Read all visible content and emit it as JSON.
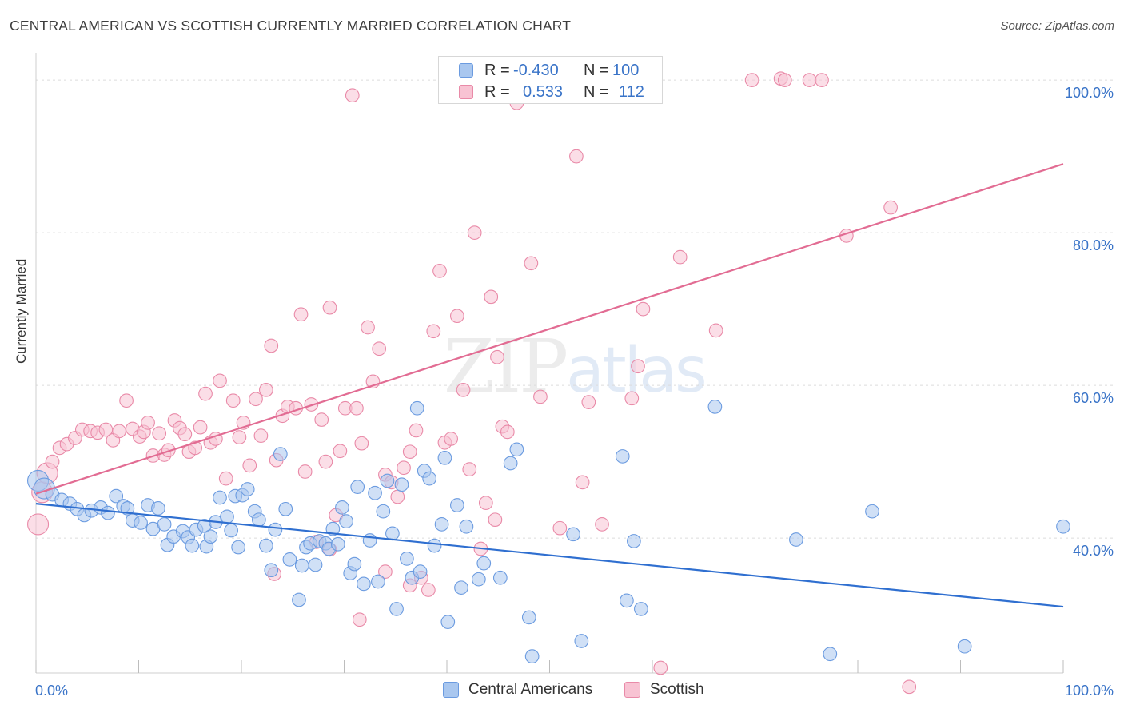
{
  "title": "CENTRAL AMERICAN VS SCOTTISH CURRENTLY MARRIED CORRELATION CHART",
  "source": "Source: ZipAtlas.com",
  "watermark": {
    "zip": "ZIP",
    "atlas": "atlas"
  },
  "legend": {
    "rows": [
      {
        "r_label": "R =",
        "r_value": "-0.430",
        "n_label": "N =",
        "n_value": "100",
        "color": "#a9c7ef",
        "border": "#6b9be0"
      },
      {
        "r_label": "R =",
        "r_value": "0.533",
        "n_label": "N =",
        "n_value": "112",
        "color": "#f8c3d3",
        "border": "#e98aa8"
      }
    ]
  },
  "bottom_legend": [
    {
      "label": "Central Americans",
      "color": "#a9c7ef",
      "border": "#6b9be0"
    },
    {
      "label": "Scottish",
      "color": "#f8c3d3",
      "border": "#e98aa8"
    }
  ],
  "chart_data": {
    "type": "scatter",
    "title": "CENTRAL AMERICAN VS SCOTTISH CURRENTLY MARRIED CORRELATION CHART",
    "xlabel": "",
    "ylabel": "Currently Married",
    "xlim": [
      0,
      100
    ],
    "ylim": [
      22,
      102
    ],
    "x_tick_labels": [
      "0.0%",
      "100.0%"
    ],
    "y_ticks": [
      40,
      60,
      80,
      100
    ],
    "y_tick_labels": [
      "40.0%",
      "60.0%",
      "80.0%",
      "100.0%"
    ],
    "grid": true,
    "legend_position": "top-center",
    "colors": {
      "blue_fill": "#a9c7ef",
      "blue_stroke": "#6b9be0",
      "blue_line": "#2f6fd0",
      "pink_fill": "#f8c3d3",
      "pink_stroke": "#e98aa8",
      "pink_line": "#e26c93",
      "tick_label": "#3a74c8"
    },
    "series": [
      {
        "name": "Central Americans",
        "r": -0.43,
        "n": 100,
        "trend": {
          "x": [
            0,
            100
          ],
          "y": [
            44.5,
            31.0
          ]
        },
        "points": [
          [
            0.2,
            47.5
          ],
          [
            0.8,
            46.5
          ],
          [
            1.6,
            45.7
          ],
          [
            2.5,
            45.0
          ],
          [
            3.3,
            44.5
          ],
          [
            4.0,
            43.8
          ],
          [
            4.7,
            43.0
          ],
          [
            5.4,
            43.6
          ],
          [
            6.3,
            44.0
          ],
          [
            7.0,
            43.3
          ],
          [
            7.8,
            45.5
          ],
          [
            8.5,
            44.2
          ],
          [
            8.9,
            43.9
          ],
          [
            9.4,
            42.3
          ],
          [
            10.2,
            42.0
          ],
          [
            10.9,
            44.3
          ],
          [
            11.4,
            41.2
          ],
          [
            11.9,
            43.9
          ],
          [
            12.5,
            41.8
          ],
          [
            12.8,
            39.1
          ],
          [
            13.4,
            40.2
          ],
          [
            14.3,
            40.9
          ],
          [
            14.8,
            40.1
          ],
          [
            15.2,
            39.0
          ],
          [
            15.6,
            41.1
          ],
          [
            16.4,
            41.6
          ],
          [
            16.6,
            38.9
          ],
          [
            17.0,
            40.2
          ],
          [
            17.5,
            42.1
          ],
          [
            17.9,
            45.3
          ],
          [
            18.6,
            42.8
          ],
          [
            19.0,
            41.0
          ],
          [
            19.4,
            45.5
          ],
          [
            19.7,
            38.8
          ],
          [
            20.1,
            45.6
          ],
          [
            20.6,
            46.4
          ],
          [
            21.3,
            43.5
          ],
          [
            21.7,
            42.4
          ],
          [
            22.4,
            39.0
          ],
          [
            22.9,
            35.8
          ],
          [
            23.3,
            41.1
          ],
          [
            23.8,
            51.0
          ],
          [
            24.3,
            43.8
          ],
          [
            24.7,
            37.2
          ],
          [
            25.6,
            31.9
          ],
          [
            25.9,
            36.4
          ],
          [
            26.3,
            38.8
          ],
          [
            26.7,
            39.3
          ],
          [
            27.2,
            36.5
          ],
          [
            27.6,
            39.6
          ],
          [
            28.2,
            39.3
          ],
          [
            28.5,
            38.6
          ],
          [
            28.9,
            41.2
          ],
          [
            29.4,
            39.2
          ],
          [
            29.8,
            44.0
          ],
          [
            30.2,
            42.2
          ],
          [
            30.6,
            35.4
          ],
          [
            31.0,
            36.6
          ],
          [
            31.3,
            46.7
          ],
          [
            31.9,
            34.0
          ],
          [
            32.5,
            39.7
          ],
          [
            33.0,
            45.9
          ],
          [
            33.3,
            34.3
          ],
          [
            33.8,
            43.5
          ],
          [
            34.2,
            47.5
          ],
          [
            34.7,
            40.6
          ],
          [
            35.1,
            30.7
          ],
          [
            35.6,
            47.0
          ],
          [
            36.1,
            37.3
          ],
          [
            36.6,
            34.8
          ],
          [
            37.1,
            57.0
          ],
          [
            37.4,
            35.6
          ],
          [
            37.8,
            48.8
          ],
          [
            38.3,
            47.8
          ],
          [
            38.8,
            39.0
          ],
          [
            39.5,
            41.8
          ],
          [
            39.8,
            50.5
          ],
          [
            40.1,
            29.0
          ],
          [
            41.0,
            44.3
          ],
          [
            41.4,
            33.5
          ],
          [
            41.9,
            41.5
          ],
          [
            43.1,
            34.6
          ],
          [
            43.6,
            36.7
          ],
          [
            45.2,
            34.8
          ],
          [
            46.2,
            49.8
          ],
          [
            46.8,
            51.6
          ],
          [
            48.3,
            24.5
          ],
          [
            48.0,
            29.6
          ],
          [
            52.3,
            40.5
          ],
          [
            53.1,
            26.5
          ],
          [
            57.1,
            50.7
          ],
          [
            57.5,
            31.8
          ],
          [
            58.2,
            39.6
          ],
          [
            58.9,
            30.7
          ],
          [
            66.1,
            57.2
          ],
          [
            74.0,
            39.8
          ],
          [
            77.3,
            24.8
          ],
          [
            81.4,
            43.5
          ],
          [
            90.4,
            25.8
          ],
          [
            100.0,
            41.5
          ]
        ]
      },
      {
        "name": "Scottish",
        "r": 0.533,
        "n": 112,
        "trend": {
          "x": [
            0,
            100
          ],
          "y": [
            45.8,
            89.0
          ]
        },
        "points": [
          [
            0.2,
            41.8
          ],
          [
            0.6,
            46.0
          ],
          [
            1.1,
            48.5
          ],
          [
            1.6,
            50.0
          ],
          [
            2.3,
            51.8
          ],
          [
            3.0,
            52.3
          ],
          [
            3.8,
            53.1
          ],
          [
            4.5,
            54.2
          ],
          [
            5.3,
            54.0
          ],
          [
            6.0,
            53.8
          ],
          [
            6.8,
            54.2
          ],
          [
            7.5,
            52.8
          ],
          [
            8.1,
            54.0
          ],
          [
            8.8,
            58.0
          ],
          [
            9.4,
            54.3
          ],
          [
            10.1,
            53.3
          ],
          [
            10.5,
            53.9
          ],
          [
            10.9,
            55.1
          ],
          [
            11.4,
            50.8
          ],
          [
            12.0,
            53.7
          ],
          [
            12.5,
            50.9
          ],
          [
            12.9,
            51.5
          ],
          [
            13.5,
            55.4
          ],
          [
            14.0,
            54.4
          ],
          [
            14.5,
            53.6
          ],
          [
            14.9,
            51.3
          ],
          [
            15.5,
            51.8
          ],
          [
            16.0,
            54.5
          ],
          [
            16.5,
            58.9
          ],
          [
            17.0,
            52.5
          ],
          [
            17.5,
            53.0
          ],
          [
            17.9,
            60.6
          ],
          [
            18.5,
            47.8
          ],
          [
            19.2,
            58.0
          ],
          [
            19.8,
            53.2
          ],
          [
            20.2,
            55.1
          ],
          [
            20.8,
            49.5
          ],
          [
            21.4,
            58.2
          ],
          [
            21.9,
            53.4
          ],
          [
            22.4,
            59.4
          ],
          [
            22.9,
            65.2
          ],
          [
            23.4,
            50.2
          ],
          [
            24.0,
            56.0
          ],
          [
            24.5,
            57.2
          ],
          [
            25.3,
            57.0
          ],
          [
            25.8,
            69.3
          ],
          [
            26.2,
            48.7
          ],
          [
            26.8,
            57.5
          ],
          [
            27.3,
            39.5
          ],
          [
            27.8,
            55.5
          ],
          [
            28.2,
            50.0
          ],
          [
            28.6,
            70.2
          ],
          [
            29.2,
            43.0
          ],
          [
            29.6,
            51.4
          ],
          [
            30.1,
            57.0
          ],
          [
            30.8,
            98.0
          ],
          [
            31.2,
            57.0
          ],
          [
            31.7,
            52.4
          ],
          [
            32.3,
            67.6
          ],
          [
            32.8,
            60.5
          ],
          [
            33.4,
            64.8
          ],
          [
            34.0,
            48.3
          ],
          [
            34.6,
            47.3
          ],
          [
            35.2,
            45.4
          ],
          [
            35.8,
            49.2
          ],
          [
            36.4,
            51.3
          ],
          [
            37.0,
            54.1
          ],
          [
            37.5,
            34.8
          ],
          [
            38.2,
            33.2
          ],
          [
            38.7,
            67.1
          ],
          [
            39.3,
            75.0
          ],
          [
            39.8,
            52.5
          ],
          [
            40.4,
            53.0
          ],
          [
            41.0,
            69.1
          ],
          [
            41.6,
            59.4
          ],
          [
            42.2,
            49.0
          ],
          [
            42.7,
            80.0
          ],
          [
            43.3,
            38.6
          ],
          [
            43.8,
            44.6
          ],
          [
            44.3,
            71.6
          ],
          [
            44.9,
            63.7
          ],
          [
            45.4,
            54.6
          ],
          [
            45.9,
            53.9
          ],
          [
            46.8,
            97.0
          ],
          [
            48.2,
            76.0
          ],
          [
            49.1,
            58.5
          ],
          [
            51.0,
            41.3
          ],
          [
            52.1,
            100.0
          ],
          [
            52.6,
            90.0
          ],
          [
            53.2,
            47.3
          ],
          [
            53.8,
            57.8
          ],
          [
            55.1,
            41.8
          ],
          [
            58.0,
            58.3
          ],
          [
            58.6,
            62.5
          ],
          [
            59.1,
            70.0
          ],
          [
            60.8,
            23.0
          ],
          [
            62.7,
            76.8
          ],
          [
            66.2,
            67.2
          ],
          [
            69.7,
            100.0
          ],
          [
            72.5,
            100.2
          ],
          [
            72.9,
            100.0
          ],
          [
            75.3,
            100.0
          ],
          [
            76.5,
            100.0
          ],
          [
            78.9,
            79.6
          ],
          [
            83.2,
            83.3
          ],
          [
            85.0,
            20.5
          ],
          [
            23.2,
            35.3
          ],
          [
            28.6,
            38.5
          ],
          [
            31.5,
            29.3
          ],
          [
            34.0,
            35.6
          ],
          [
            36.4,
            33.8
          ],
          [
            44.7,
            42.4
          ]
        ]
      }
    ]
  }
}
